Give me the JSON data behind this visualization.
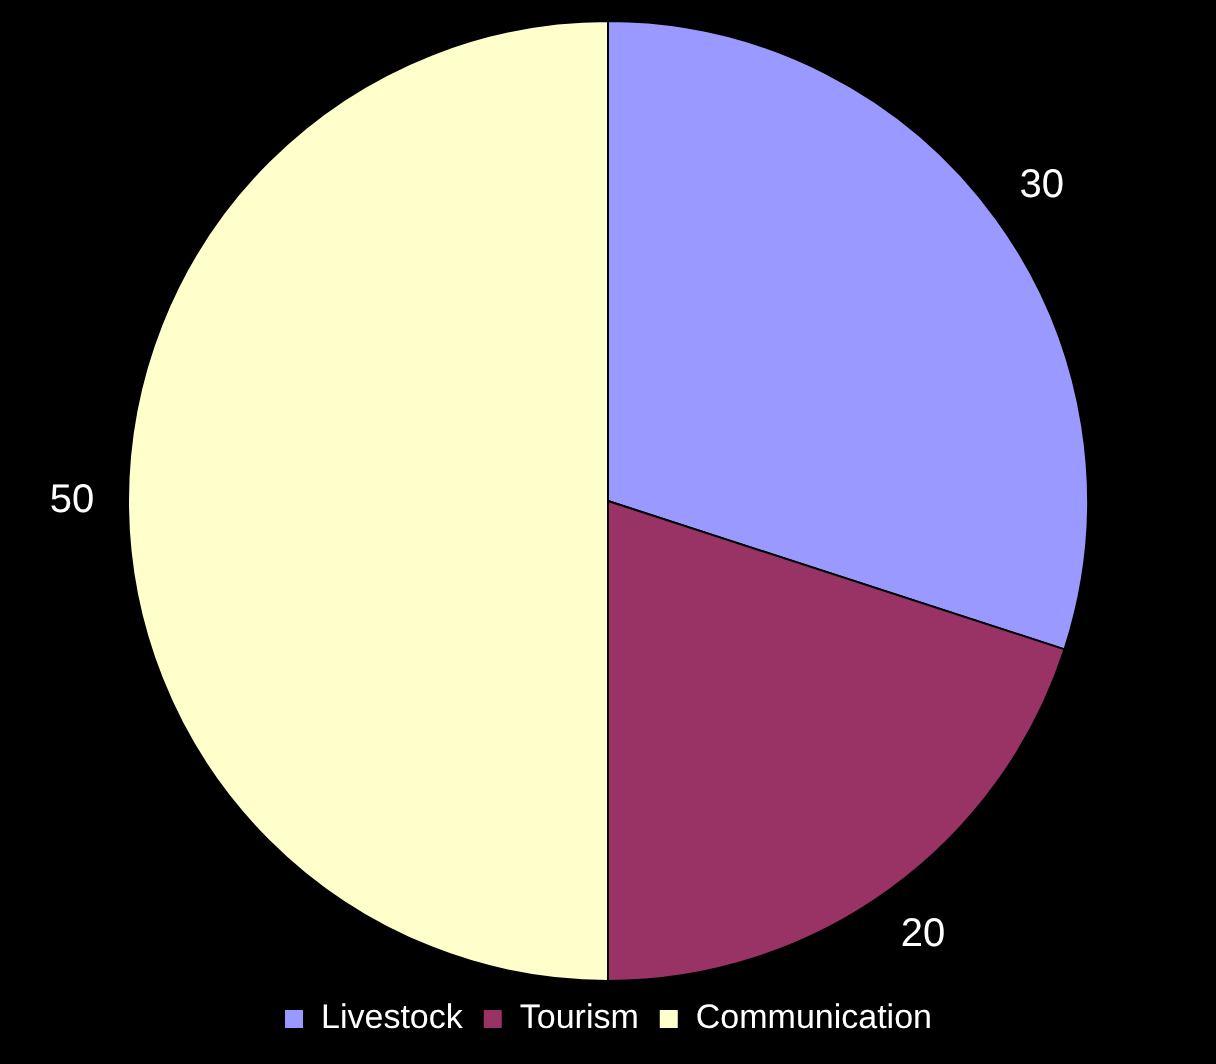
{
  "chart_data": {
    "type": "pie",
    "categories": [
      "Livestock",
      "Tourism",
      "Communication"
    ],
    "values": [
      30,
      20,
      50
    ],
    "colors": [
      "#9999ff",
      "#993366",
      "#ffffcc"
    ],
    "data_labels": true,
    "legend": "bottom"
  }
}
